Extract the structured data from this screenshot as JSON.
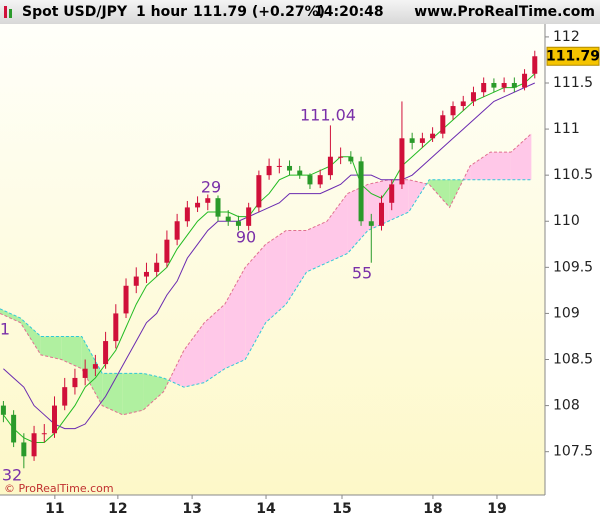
{
  "header": {
    "symbol": "Spot USD/JPY",
    "period": "1 hour",
    "quote": "111.79 (+0.27%)",
    "time": "14:20:48",
    "site": "www.ProRealTime.com"
  },
  "footer": "© ProRealTime.com",
  "chart_data": {
    "type": "candlestick",
    "up_color": "#d0103a",
    "down_color": "#2a9a2a",
    "x": [
      1,
      4,
      7,
      10,
      13,
      16,
      19,
      22,
      25,
      28,
      31,
      34,
      37,
      40,
      43,
      46,
      49,
      52,
      55,
      58,
      61,
      64,
      67,
      70,
      73,
      76,
      79,
      82,
      85,
      88,
      91,
      94,
      97,
      100,
      103,
      106,
      109,
      112,
      115,
      118,
      121,
      124,
      127,
      130,
      133,
      136,
      139,
      142,
      145,
      148,
      151,
      154,
      157
    ],
    "open": [
      108.0,
      107.9,
      107.6,
      107.45,
      107.7,
      107.7,
      108.0,
      108.2,
      108.3,
      108.4,
      108.45,
      108.7,
      109.0,
      109.3,
      109.4,
      109.45,
      109.55,
      109.8,
      110.0,
      110.15,
      110.2,
      110.25,
      110.05,
      110.0,
      109.95,
      110.15,
      110.5,
      110.6,
      110.6,
      110.55,
      110.5,
      110.4,
      110.5,
      110.7,
      110.7,
      110.65,
      110.0,
      109.95,
      110.2,
      110.4,
      110.9,
      110.85,
      110.9,
      110.95,
      111.15,
      111.25,
      111.3,
      111.4,
      111.5,
      111.45,
      111.5,
      111.45,
      111.6
    ],
    "high": [
      108.05,
      107.95,
      107.7,
      107.78,
      107.8,
      108.1,
      108.3,
      108.4,
      108.5,
      108.55,
      108.8,
      109.1,
      109.38,
      109.5,
      109.55,
      109.65,
      109.9,
      110.08,
      110.22,
      110.27,
      110.29,
      110.28,
      110.12,
      110.06,
      110.2,
      110.55,
      110.68,
      110.68,
      110.66,
      110.6,
      110.52,
      110.56,
      111.04,
      110.8,
      110.76,
      110.7,
      110.08,
      110.28,
      110.45,
      111.3,
      110.96,
      110.96,
      111.02,
      111.2,
      111.3,
      111.36,
      111.46,
      111.56,
      111.55,
      111.56,
      111.56,
      111.65,
      111.85
    ],
    "low": [
      107.82,
      107.55,
      107.32,
      107.4,
      107.6,
      107.65,
      107.95,
      108.12,
      108.22,
      108.32,
      108.4,
      108.62,
      108.95,
      109.22,
      109.33,
      109.4,
      109.5,
      109.74,
      109.94,
      110.1,
      110.12,
      110.0,
      109.95,
      109.9,
      109.9,
      110.1,
      110.45,
      110.52,
      110.5,
      110.46,
      110.35,
      110.36,
      110.45,
      110.62,
      110.62,
      109.95,
      109.55,
      109.9,
      110.12,
      110.35,
      110.78,
      110.8,
      110.86,
      110.9,
      111.1,
      111.2,
      111.25,
      111.35,
      111.4,
      111.4,
      111.4,
      111.42,
      111.55
    ],
    "close": [
      107.9,
      107.6,
      107.45,
      107.7,
      107.7,
      108.0,
      108.2,
      108.3,
      108.4,
      108.45,
      108.7,
      109.0,
      109.3,
      109.4,
      109.45,
      109.55,
      109.8,
      110.0,
      110.15,
      110.2,
      110.25,
      110.05,
      110.0,
      109.95,
      110.15,
      110.5,
      110.6,
      110.6,
      110.55,
      110.5,
      110.4,
      110.5,
      110.7,
      110.7,
      110.65,
      110.0,
      109.95,
      110.2,
      110.4,
      110.9,
      110.85,
      110.9,
      110.95,
      111.15,
      111.25,
      111.3,
      111.4,
      111.5,
      111.45,
      111.5,
      111.45,
      111.6,
      111.79
    ],
    "tenkan": {
      "color": "#22bb22",
      "values": [
        107.9,
        107.75,
        107.65,
        107.6,
        107.6,
        107.7,
        107.85,
        108.0,
        108.2,
        108.3,
        108.45,
        108.6,
        108.85,
        109.1,
        109.3,
        109.4,
        109.5,
        109.7,
        109.85,
        110.0,
        110.1,
        110.1,
        110.1,
        110.05,
        110.05,
        110.2,
        110.3,
        110.45,
        110.5,
        110.5,
        110.5,
        110.55,
        110.6,
        110.7,
        110.7,
        110.4,
        110.3,
        110.25,
        110.4,
        110.6,
        110.7,
        110.8,
        110.9,
        111.0,
        111.1,
        111.2,
        111.3,
        111.35,
        111.4,
        111.45,
        111.45,
        111.5,
        111.6
      ]
    },
    "kijun": {
      "color": "#6a2ab0",
      "values": [
        108.4,
        108.3,
        108.2,
        108.0,
        107.9,
        107.8,
        107.75,
        107.75,
        107.8,
        107.95,
        108.1,
        108.3,
        108.5,
        108.7,
        108.9,
        109.0,
        109.2,
        109.35,
        109.6,
        109.75,
        109.9,
        110.0,
        110.0,
        110.0,
        110.05,
        110.1,
        110.15,
        110.2,
        110.3,
        110.3,
        110.3,
        110.3,
        110.35,
        110.4,
        110.5,
        110.5,
        110.5,
        110.45,
        110.45,
        110.45,
        110.5,
        110.6,
        110.7,
        110.8,
        110.9,
        111.0,
        111.1,
        111.2,
        111.3,
        111.35,
        111.4,
        111.45,
        111.5
      ]
    },
    "cloud": {
      "x": [
        0,
        6,
        12,
        18,
        24,
        30,
        36,
        42,
        48,
        54,
        60,
        66,
        72,
        78,
        84,
        90,
        96,
        102,
        108,
        114,
        120,
        126,
        132,
        138,
        144,
        150,
        156
      ],
      "span_a": [
        109.0,
        108.9,
        108.55,
        108.5,
        108.4,
        108.0,
        107.9,
        107.95,
        108.15,
        108.6,
        108.9,
        109.1,
        109.5,
        109.75,
        109.9,
        109.9,
        110.0,
        110.3,
        110.4,
        110.45,
        110.45,
        110.4,
        110.15,
        110.6,
        110.75,
        110.75,
        110.95
      ],
      "span_b": [
        109.05,
        108.95,
        108.75,
        108.75,
        108.75,
        108.35,
        108.35,
        108.35,
        108.3,
        108.2,
        108.25,
        108.4,
        108.5,
        108.9,
        109.1,
        109.45,
        109.55,
        109.65,
        109.9,
        110.0,
        110.1,
        110.45,
        110.45,
        110.45,
        110.45,
        110.45,
        110.45
      ],
      "a_color": "#e07090",
      "b_color": "#30c8d8",
      "up_fill": "#ffc8e8",
      "down_fill": "#b0f0a0"
    },
    "annotations": [
      "111.04",
      "29",
      "90",
      "55",
      "32",
      "1"
    ],
    "xlim": [
      0,
      160
    ],
    "xticks": [
      {
        "value": 16.1,
        "label": "11"
      },
      {
        "value": 34.6,
        "label": "12"
      },
      {
        "value": 56.4,
        "label": "13"
      },
      {
        "value": 78.1,
        "label": "14"
      },
      {
        "value": 100.4,
        "label": "15"
      },
      {
        "value": 127.1,
        "label": "18"
      },
      {
        "value": 145.9,
        "label": "19"
      }
    ],
    "ylim": [
      107.03,
      112.14
    ],
    "yticks": [
      107.5,
      108,
      108.5,
      109,
      109.5,
      110,
      110.5,
      111,
      111.5,
      112
    ]
  }
}
